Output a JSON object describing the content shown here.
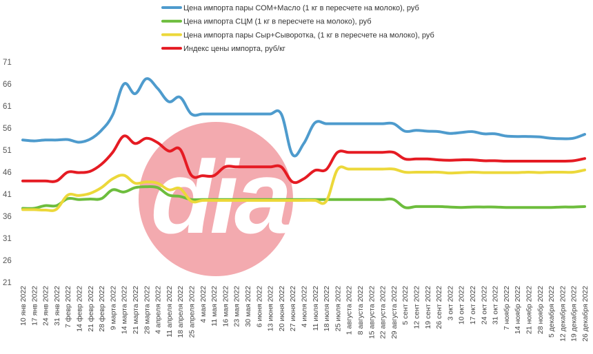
{
  "chart_data": {
    "type": "line",
    "title": "",
    "ylim": [
      21,
      71
    ],
    "y_ticks": [
      21,
      26,
      31,
      36,
      41,
      46,
      51,
      56,
      61,
      66,
      71
    ],
    "grid": false,
    "legend_position": "top",
    "categories": [
      "10 янв 2022",
      "17 янв 2022",
      "24 янв 2022",
      "31 янв 2022",
      "7 февр 2022",
      "14 февр 2022",
      "21 февр 2022",
      "28 февр 2022",
      "9 марта 2022",
      "14 марта 2022",
      "21 марта 2022",
      "28 марта 2022",
      "4 апреля 2022",
      "11 апреля 2022",
      "18 апреля 2022",
      "25 апреля 2022",
      "4 мая 2022",
      "11 мая 2022",
      "16 мая 2022",
      "23 мая 2022",
      "30 мая 2022",
      "6 июня 2022",
      "13 июня 2022",
      "20 июня 2022",
      "27 июня 2022",
      "4 июля 2022",
      "11 июля 2022",
      "18 июля 2022",
      "25 июля 2022",
      "1 августа 2022",
      "8 августа 2022",
      "15 августа 2022",
      "22 августа 2022",
      "29 августа 2022",
      "5 сент 2022",
      "12 сент 2022",
      "19 сент 2022",
      "26 сент 2022",
      "3 окт 2022",
      "10 окт 2022",
      "17 окт 2022",
      "24 окт 2022",
      "31 окт 2022",
      "7 ноябр 2022",
      "14 ноябр 2022",
      "21 ноябр 2022",
      "28 ноябр 2022",
      "5 декабря 2022",
      "12 декабря 2022",
      "19 декабря 2022",
      "26 декабря 2022"
    ],
    "series": [
      {
        "name": "Цена импорта пары СОМ+Масло  (1 кг в пересчете на молоко), руб",
        "color": "#4e9bcd",
        "values": [
          53.3,
          53.1,
          53.3,
          53.3,
          53.4,
          52.8,
          53.5,
          55.5,
          59.0,
          66.0,
          63.8,
          67.2,
          65.0,
          62.0,
          63.0,
          59.2,
          59.2,
          59.2,
          59.2,
          59.2,
          59.2,
          59.2,
          59.2,
          59.2,
          50.0,
          52.5,
          57.2,
          57.0,
          57.0,
          57.0,
          57.0,
          57.0,
          57.0,
          57.0,
          55.3,
          55.5,
          55.3,
          55.2,
          54.8,
          55.0,
          55.2,
          54.7,
          54.7,
          54.2,
          54.1,
          54.1,
          54.0,
          53.7,
          53.6,
          53.7,
          54.6
        ]
      },
      {
        "name": "Цена импорта СЦМ (1 кг в пересчете на молоко), руб",
        "color": "#6dbd3d",
        "values": [
          37.8,
          37.8,
          38.4,
          38.4,
          40.0,
          39.8,
          39.9,
          40.0,
          42.0,
          41.5,
          42.5,
          42.7,
          42.5,
          40.8,
          40.5,
          39.8,
          39.8,
          39.8,
          39.8,
          39.8,
          39.8,
          39.8,
          39.8,
          39.8,
          39.8,
          39.8,
          39.8,
          39.8,
          39.8,
          39.8,
          39.8,
          39.8,
          39.8,
          39.8,
          38.0,
          38.2,
          38.2,
          38.2,
          38.1,
          38.0,
          38.1,
          38.1,
          38.1,
          38.0,
          38.0,
          38.0,
          38.0,
          38.0,
          38.1,
          38.1,
          38.2
        ]
      },
      {
        "name": "Цена импорта пары Сыр+Сыворотка, (1 кг в пересчете на молоко), руб",
        "color": "#ecd83a",
        "values": [
          37.5,
          37.5,
          37.4,
          37.6,
          40.8,
          40.7,
          41.2,
          42.5,
          44.5,
          45.3,
          43.5,
          43.8,
          43.5,
          42.0,
          42.3,
          39.4,
          39.6,
          39.6,
          39.6,
          39.6,
          39.6,
          39.6,
          39.6,
          39.6,
          39.6,
          39.6,
          39.6,
          39.4,
          46.6,
          46.7,
          46.7,
          46.7,
          46.7,
          46.7,
          46.0,
          46.0,
          46.0,
          46.0,
          45.8,
          45.9,
          46.0,
          45.9,
          45.9,
          45.9,
          45.9,
          46.0,
          45.9,
          46.0,
          46.0,
          46.0,
          46.5
        ]
      },
      {
        "name": "Индекс цены импорта, руб/кг",
        "color": "#e51b23",
        "values": [
          44.0,
          44.0,
          44.0,
          44.0,
          46.0,
          45.9,
          46.2,
          47.8,
          50.5,
          54.2,
          52.5,
          53.7,
          52.7,
          50.8,
          51.2,
          45.3,
          45.2,
          45.2,
          47.2,
          47.2,
          47.2,
          47.2,
          47.2,
          47.2,
          43.8,
          44.5,
          46.4,
          46.6,
          50.5,
          50.5,
          50.5,
          50.5,
          50.5,
          50.5,
          49.0,
          49.0,
          49.0,
          48.8,
          48.7,
          48.8,
          48.8,
          48.6,
          48.6,
          48.5,
          48.5,
          48.5,
          48.5,
          48.5,
          48.5,
          48.6,
          49.1
        ]
      }
    ]
  },
  "watermark": {
    "text": "dia",
    "color": "#f2a3a8"
  }
}
